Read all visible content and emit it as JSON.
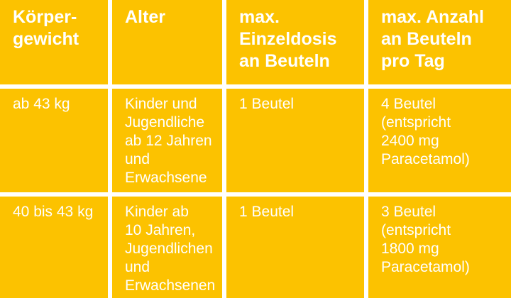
{
  "chart_data": {
    "type": "table",
    "columns": [
      "Körper-\ngewicht",
      "Alter",
      "max.\nEinzeldosis\nan Beuteln",
      "max. Anzahl\nan Beuteln\npro Tag"
    ],
    "rows": [
      [
        "ab 43 kg",
        "Kinder und\nJugendliche\nab 12 Jahren\nund\nErwachsene",
        "1 Beutel",
        "4 Beutel\n(entspricht\n2400 mg\nParacetamol)"
      ],
      [
        "40 bis 43 kg",
        "Kinder ab\n10 Jahren,\nJugendlichen\nund\nErwachsenen",
        "1 Beutel",
        "3 Beutel\n(entspricht\n1800 mg\nParacetamol)"
      ]
    ],
    "colors": {
      "cell_background": "#FCC200",
      "grid_lines": "#FFFFFF",
      "header_text": "#FFFFFF",
      "body_text": "#FFFFFF"
    }
  }
}
